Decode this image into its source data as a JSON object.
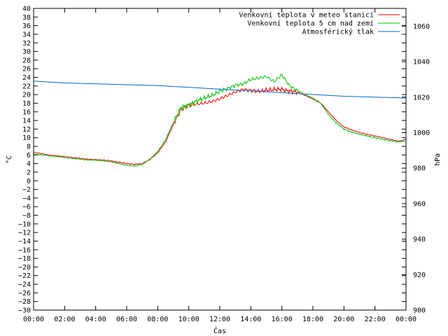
{
  "chart_data": {
    "type": "line",
    "xlabel": "Čas",
    "ylabel": "°C",
    "y2label": "hPa",
    "legend_position": "top-right",
    "grid": false,
    "xlim": [
      "00:00",
      "24:00"
    ],
    "ylim": [
      -30,
      40
    ],
    "y2lim": [
      900,
      1070
    ],
    "x_ticks": [
      "00:00",
      "02:00",
      "04:00",
      "06:00",
      "08:00",
      "10:00",
      "12:00",
      "14:00",
      "16:00",
      "18:00",
      "20:00",
      "22:00",
      "00:00"
    ],
    "y_ticks": [
      40,
      38,
      36,
      34,
      32,
      30,
      28,
      26,
      24,
      22,
      20,
      18,
      16,
      14,
      12,
      10,
      8,
      6,
      4,
      2,
      0,
      -2,
      -4,
      -6,
      -8,
      -10,
      -12,
      -14,
      -16,
      -18,
      -20,
      -22,
      -24,
      -26,
      -28,
      -30
    ],
    "y2_ticks": [
      1060,
      1040,
      1020,
      1000,
      980,
      960,
      940,
      920,
      900
    ],
    "series": [
      {
        "name": "Venkovní teplota v meteo stanici",
        "color": "#ff0000",
        "axis": "left",
        "x": [
          0,
          0.5,
          1,
          1.5,
          2,
          2.5,
          3,
          3.5,
          4,
          4.5,
          5,
          5.5,
          6,
          6.5,
          7,
          7.5,
          8,
          8.5,
          9,
          9.5,
          10,
          10.5,
          11,
          11.5,
          12,
          12.5,
          13,
          13.5,
          14,
          14.5,
          15,
          15.5,
          16,
          16.5,
          17,
          17.5,
          18,
          18.5,
          19,
          19.5,
          20,
          20.5,
          21,
          21.5,
          22,
          22.5,
          23,
          23.5,
          24
        ],
        "y": [
          6.6,
          6.3,
          6.0,
          5.8,
          5.6,
          5.4,
          5.2,
          5.0,
          4.9,
          4.8,
          4.6,
          4.3,
          4.0,
          3.8,
          4.0,
          5.0,
          6.5,
          9.0,
          13.0,
          16.5,
          17.6,
          17.8,
          18.0,
          18.4,
          19.0,
          19.8,
          20.6,
          21.2,
          21.0,
          20.8,
          21.0,
          21.2,
          21.2,
          20.8,
          20.6,
          19.8,
          19.0,
          18.0,
          16.0,
          14.0,
          12.5,
          11.8,
          11.2,
          10.8,
          10.4,
          10.0,
          9.6,
          9.2,
          9.6
        ]
      },
      {
        "name": "Venkovní teplota 5 cm nad zemí",
        "color": "#00c000",
        "axis": "left",
        "x": [
          0,
          0.5,
          1,
          1.5,
          2,
          2.5,
          3,
          3.5,
          4,
          4.5,
          5,
          5.5,
          6,
          6.5,
          7,
          7.5,
          8,
          8.5,
          9,
          9.5,
          10,
          10.5,
          11,
          11.5,
          12,
          12.5,
          13,
          13.5,
          14,
          14.5,
          15,
          15.5,
          16,
          16.5,
          17,
          17.5,
          18,
          18.5,
          19,
          19.5,
          20,
          20.5,
          21,
          21.5,
          22,
          22.5,
          23,
          23.5,
          24
        ],
        "y": [
          6.2,
          6.0,
          5.8,
          5.6,
          5.4,
          5.2,
          5.0,
          4.8,
          4.8,
          4.6,
          4.4,
          4.0,
          3.6,
          3.4,
          3.8,
          5.0,
          6.8,
          9.5,
          13.5,
          17.0,
          17.6,
          18.5,
          19.2,
          19.8,
          20.8,
          21.4,
          22.2,
          22.5,
          23.5,
          23.8,
          24.2,
          23.0,
          24.6,
          22.0,
          21.0,
          20.0,
          19.2,
          18.0,
          15.4,
          13.4,
          12.0,
          11.3,
          10.8,
          10.4,
          10.0,
          9.6,
          9.3,
          9.0,
          9.2
        ]
      },
      {
        "name": "Atmosférický tlak",
        "color": "#0066cc",
        "axis": "right",
        "x": [
          0,
          2,
          4,
          6,
          8,
          10,
          12,
          14,
          16,
          18,
          20,
          22,
          24
        ],
        "y": [
          1029,
          1028,
          1027.5,
          1027,
          1026.5,
          1025.5,
          1024.5,
          1023.5,
          1022.5,
          1021.5,
          1020.5,
          1020,
          1019.5
        ]
      }
    ]
  }
}
